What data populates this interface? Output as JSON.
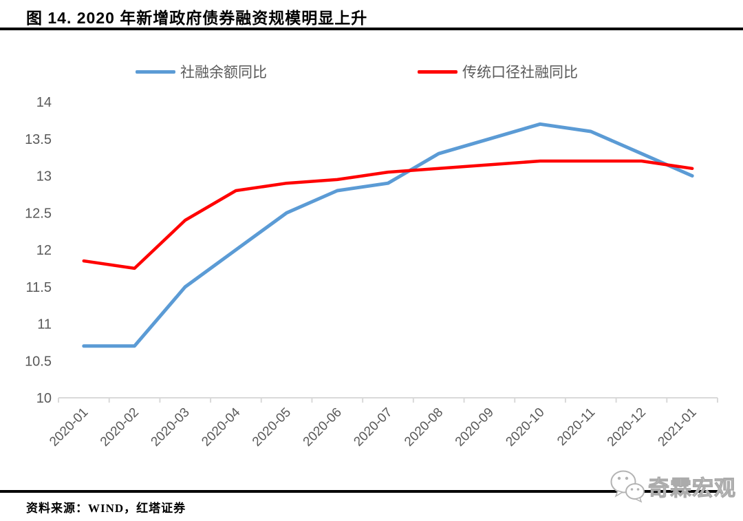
{
  "title": "图 14. 2020 年新增政府债券融资规模明显上升",
  "source": "资料来源：WIND，红塔证券",
  "watermark": "奇霖宏观",
  "colors": {
    "series_blue": "#5B9BD5",
    "series_red": "#FF0000",
    "axis_line": "#D9D9D9",
    "tick_label": "#595959",
    "title_text": "#000000",
    "watermark_gray": "#ababab"
  },
  "chart_data": {
    "type": "line",
    "categories": [
      "2020-01",
      "2020-02",
      "2020-03",
      "2020-04",
      "2020-05",
      "2020-06",
      "2020-07",
      "2020-08",
      "2020-09",
      "2020-10",
      "2020-11",
      "2020-12",
      "2021-01"
    ],
    "series": [
      {
        "name": "社融余额同比",
        "color": "#5B9BD5",
        "values": [
          10.7,
          10.7,
          11.5,
          12.0,
          12.5,
          12.8,
          12.9,
          13.3,
          13.5,
          13.7,
          13.6,
          13.3,
          13.0
        ]
      },
      {
        "name": "传统口径社融同比",
        "color": "#FF0000",
        "values": [
          11.85,
          11.75,
          12.4,
          12.8,
          12.9,
          12.95,
          13.05,
          13.1,
          13.15,
          13.2,
          13.2,
          13.2,
          13.1
        ]
      }
    ],
    "title": "图 14. 2020 年新增政府债券融资规模明显上升",
    "xlabel": "",
    "ylabel": "",
    "ylim": [
      10,
      14
    ],
    "yticks": [
      "10",
      "10.5",
      "11",
      "11.5",
      "12",
      "12.5",
      "13",
      "13.5",
      "14"
    ],
    "grid": false,
    "legend_position": "top"
  }
}
